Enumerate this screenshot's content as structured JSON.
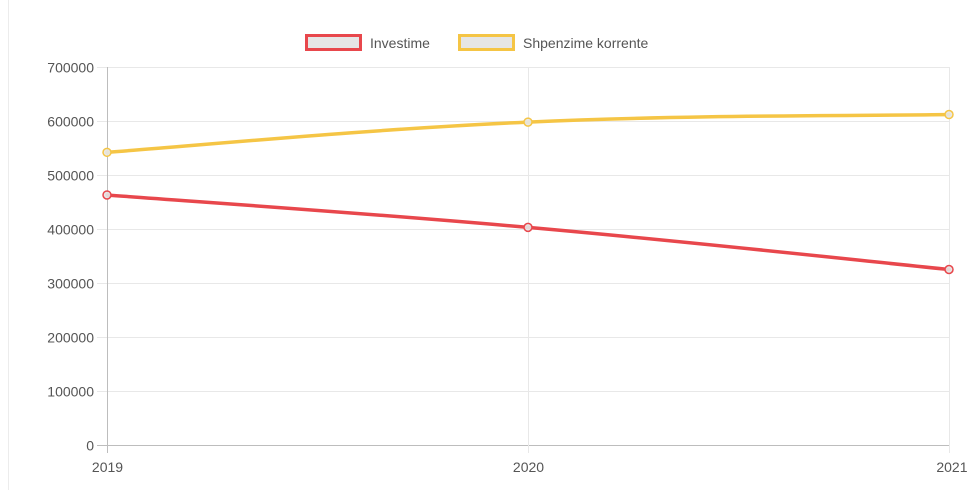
{
  "chart_data": {
    "type": "line",
    "title": "",
    "xlabel": "",
    "ylabel": "",
    "categories": [
      "2019",
      "2020",
      "2021"
    ],
    "ylim": [
      0,
      700000
    ],
    "yticks": [
      "700000",
      "600000",
      "500000",
      "400000",
      "300000",
      "200000",
      "100000",
      "0"
    ],
    "grid": true,
    "legend_position": "top-center",
    "series": [
      {
        "name": "Investime",
        "color": "#e8474c",
        "values": [
          463000,
          403000,
          325000
        ]
      },
      {
        "name": "Shpenzime korrente",
        "color": "#f5c545",
        "values": [
          542000,
          598000,
          612000
        ]
      }
    ]
  }
}
